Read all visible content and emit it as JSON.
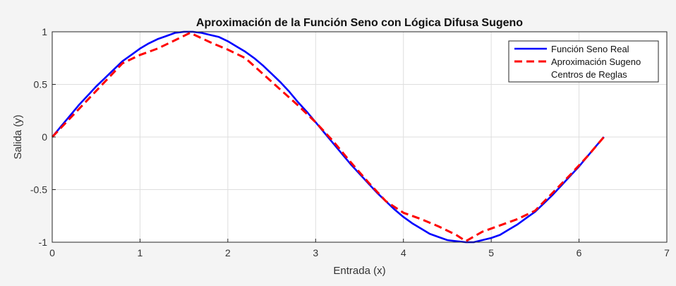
{
  "chart_data": {
    "type": "line",
    "title": "Aproximación de la Función Seno con Lógica Difusa Sugeno",
    "xlabel": "Entrada (x)",
    "ylabel": "Salida (y)",
    "xlim": [
      0,
      7
    ],
    "ylim": [
      -1,
      1
    ],
    "xticks": [
      "0",
      "1",
      "2",
      "3",
      "4",
      "5",
      "6",
      "7"
    ],
    "yticks": [
      "-1",
      "-0.5",
      "0",
      "0.5",
      "1"
    ],
    "grid": true,
    "legend_position": "top-right",
    "series": [
      {
        "name": "Función Seno Real",
        "color": "#0000ff",
        "style": "solid",
        "x": [
          0,
          0.1,
          0.2,
          0.3,
          0.4,
          0.5,
          0.6,
          0.7,
          0.8,
          0.9,
          1.0,
          1.1,
          1.2,
          1.3,
          1.4,
          1.5,
          1.571,
          1.6,
          1.7,
          1.8,
          1.9,
          2.0,
          2.1,
          2.2,
          2.3,
          2.4,
          2.5,
          2.6,
          2.7,
          2.8,
          2.9,
          3.0,
          3.1,
          3.2,
          3.3,
          3.4,
          3.5,
          3.6,
          3.7,
          3.8,
          3.9,
          4.0,
          4.1,
          4.2,
          4.3,
          4.4,
          4.5,
          4.6,
          4.712,
          4.8,
          4.9,
          5.0,
          5.1,
          5.2,
          5.3,
          5.4,
          5.5,
          5.6,
          5.7,
          5.8,
          5.9,
          6.0,
          6.1,
          6.2,
          6.283
        ],
        "y": [
          0,
          0.1,
          0.2,
          0.3,
          0.39,
          0.48,
          0.56,
          0.64,
          0.72,
          0.78,
          0.84,
          0.89,
          0.93,
          0.96,
          0.99,
          1.0,
          1.0,
          1.0,
          0.99,
          0.97,
          0.95,
          0.91,
          0.86,
          0.81,
          0.75,
          0.68,
          0.6,
          0.52,
          0.43,
          0.33,
          0.24,
          0.14,
          0.04,
          -0.06,
          -0.16,
          -0.26,
          -0.35,
          -0.44,
          -0.53,
          -0.61,
          -0.69,
          -0.76,
          -0.82,
          -0.87,
          -0.92,
          -0.95,
          -0.98,
          -0.99,
          -1.0,
          -1.0,
          -0.98,
          -0.96,
          -0.93,
          -0.88,
          -0.83,
          -0.77,
          -0.71,
          -0.63,
          -0.55,
          -0.46,
          -0.37,
          -0.28,
          -0.18,
          -0.08,
          0
        ]
      },
      {
        "name": "Aproximación Sugeno",
        "color": "#ff0000",
        "style": "dashed",
        "x": [
          0,
          0.4,
          0.8,
          1.0,
          1.2,
          1.4,
          1.57,
          1.8,
          2.0,
          2.2,
          2.4,
          2.6,
          2.8,
          3.0,
          3.2,
          3.4,
          3.6,
          3.8,
          4.0,
          4.2,
          4.4,
          4.6,
          4.71,
          4.9,
          5.1,
          5.3,
          5.5,
          5.7,
          5.9,
          6.1,
          6.283
        ],
        "y": [
          0,
          0.35,
          0.7,
          0.78,
          0.84,
          0.92,
          0.99,
          0.9,
          0.83,
          0.75,
          0.6,
          0.45,
          0.3,
          0.14,
          -0.04,
          -0.24,
          -0.43,
          -0.61,
          -0.72,
          -0.78,
          -0.85,
          -0.93,
          -0.99,
          -0.9,
          -0.84,
          -0.78,
          -0.7,
          -0.53,
          -0.36,
          -0.18,
          0
        ]
      },
      {
        "name": "Centros de Reglas",
        "color": "#000000",
        "style": "none",
        "x": [],
        "y": []
      }
    ]
  }
}
